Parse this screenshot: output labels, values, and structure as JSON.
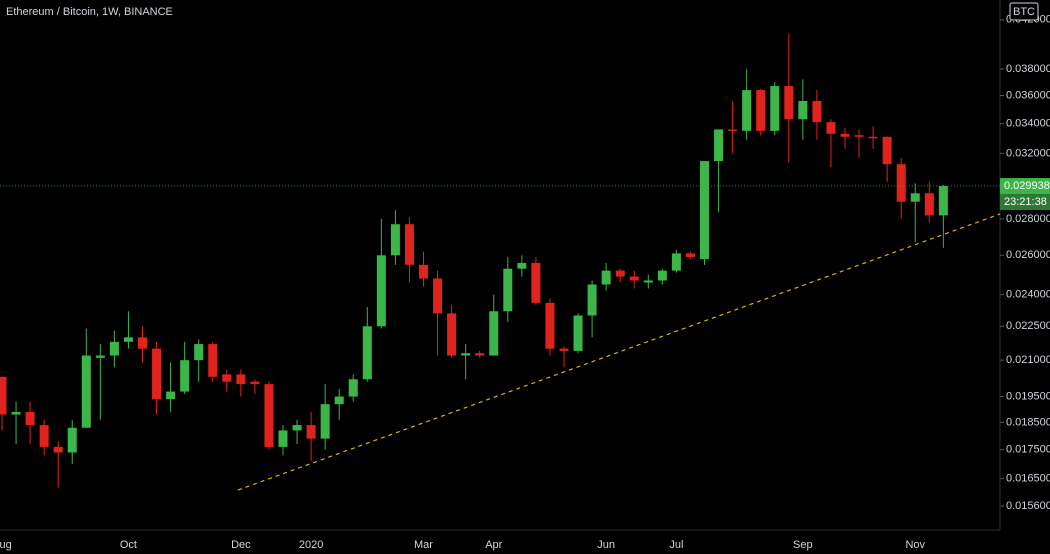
{
  "chart_data": {
    "type": "candlestick",
    "title": "Ethereum / Bitcoin, 1W, BINANCE",
    "currency": "BTC",
    "countdown": "23:21:38",
    "log_scale": true,
    "up_color": "#3cb648",
    "down_color": "#e0231c",
    "categories": [
      "Aug",
      null,
      null,
      null,
      null,
      null,
      null,
      null,
      null,
      "Oct",
      null,
      null,
      null,
      null,
      null,
      null,
      null,
      "Dec",
      null,
      null,
      null,
      null,
      "2020",
      null,
      null,
      null,
      null,
      null,
      null,
      null,
      "Mar",
      null,
      null,
      null,
      null,
      "Apr",
      null,
      null,
      null,
      null,
      null,
      null,
      null,
      "Jun",
      null,
      null,
      null,
      null,
      "Jul",
      null,
      null,
      null,
      null,
      null,
      null,
      null,
      null,
      "Sep",
      null,
      null,
      null,
      null,
      null,
      null,
      null,
      "Nov",
      null,
      null
    ],
    "open": [
      0.0203,
      0.0188,
      0.0189,
      0.0184,
      0.0176,
      0.0174,
      0.0183,
      0.0211,
      0.0212,
      0.0218,
      0.022,
      0.0215,
      0.0194,
      0.0197,
      0.021,
      0.0217,
      0.0204,
      0.0204,
      0.0201,
      0.02,
      0.0176,
      0.0182,
      0.0184,
      0.0179,
      0.0192,
      0.0195,
      0.0202,
      0.0225,
      0.026,
      0.0277,
      0.0255,
      0.0248,
      0.0231,
      0.0212,
      0.0213,
      0.0212,
      0.0232,
      0.0253,
      0.0256,
      0.0236,
      0.0215,
      0.0214,
      0.023,
      0.0245,
      0.0252,
      0.0249,
      0.0246,
      0.0247,
      0.0252,
      0.0261,
      0.0258,
      0.0315,
      0.0336,
      0.0335,
      0.0364,
      0.0335,
      0.0367,
      0.0343,
      0.0356,
      0.0341,
      0.0333,
      0.0332,
      0.0331,
      0.0331,
      0.0313,
      0.029,
      0.0295,
      0.0282
    ],
    "high": [
      0.0203,
      0.0193,
      0.0193,
      0.0186,
      0.0178,
      0.0186,
      0.0224,
      0.0217,
      0.0223,
      0.0232,
      0.0225,
      0.0218,
      0.0209,
      0.0218,
      0.0219,
      0.0218,
      0.0206,
      0.0206,
      0.0202,
      0.0201,
      0.0184,
      0.0186,
      0.0189,
      0.02,
      0.0198,
      0.0204,
      0.0234,
      0.028,
      0.0285,
      0.0281,
      0.0262,
      0.0252,
      0.0235,
      0.0217,
      0.0214,
      0.024,
      0.0259,
      0.026,
      0.0259,
      0.0238,
      0.0216,
      0.0231,
      0.0247,
      0.0256,
      0.0253,
      0.0252,
      0.025,
      0.0253,
      0.0263,
      0.0262,
      0.0315,
      0.0336,
      0.0356,
      0.038,
      0.0365,
      0.037,
      0.0408,
      0.0372,
      0.0364,
      0.0343,
      0.0337,
      0.0336,
      0.0338,
      0.0331,
      0.0317,
      0.0301,
      0.0302,
      0.03
    ],
    "low": [
      0.0182,
      0.0177,
      0.0177,
      0.0173,
      0.0162,
      0.017,
      0.0183,
      0.0186,
      0.0207,
      0.0215,
      0.0209,
      0.0188,
      0.0189,
      0.0196,
      0.0201,
      0.0201,
      0.0197,
      0.0195,
      0.0196,
      0.0175,
      0.0173,
      0.0177,
      0.0171,
      0.0175,
      0.0186,
      0.0193,
      0.0201,
      0.0224,
      0.0255,
      0.0246,
      0.0244,
      0.0212,
      0.0211,
      0.0202,
      0.0211,
      0.0212,
      0.0227,
      0.0249,
      0.0235,
      0.0212,
      0.0207,
      0.0213,
      0.022,
      0.0242,
      0.0246,
      0.0243,
      0.0243,
      0.0245,
      0.0251,
      0.0258,
      0.0255,
      0.0284,
      0.032,
      0.0329,
      0.0332,
      0.0332,
      0.0314,
      0.0329,
      0.0329,
      0.0311,
      0.0323,
      0.0317,
      0.0323,
      0.0302,
      0.028,
      0.0267,
      0.0278,
      0.0264
    ],
    "close": [
      0.0188,
      0.0189,
      0.0184,
      0.0176,
      0.0174,
      0.0183,
      0.0212,
      0.0212,
      0.0218,
      0.022,
      0.0215,
      0.0194,
      0.0197,
      0.021,
      0.0217,
      0.0203,
      0.0201,
      0.02,
      0.02,
      0.0176,
      0.0182,
      0.0184,
      0.0179,
      0.0192,
      0.0195,
      0.0202,
      0.0225,
      0.026,
      0.0277,
      0.0255,
      0.0248,
      0.0231,
      0.0212,
      0.0213,
      0.0212,
      0.0232,
      0.0253,
      0.0256,
      0.0236,
      0.0215,
      0.0214,
      0.023,
      0.0245,
      0.0252,
      0.0249,
      0.0247,
      0.0247,
      0.0252,
      0.0261,
      0.0259,
      0.0315,
      0.0336,
      0.0335,
      0.0364,
      0.0335,
      0.0367,
      0.0343,
      0.0356,
      0.0341,
      0.0333,
      0.0331,
      0.0331,
      0.033,
      0.0313,
      0.029,
      0.0295,
      0.0282,
      0.029938
    ],
    "ylim": [
      0.01486,
      0.04373
    ],
    "yticks": [
      {
        "value": 0.0156,
        "label": "0.015600"
      },
      {
        "value": 0.0165,
        "label": "0.016500"
      },
      {
        "value": 0.0175,
        "label": "0.017500"
      },
      {
        "value": 0.0185,
        "label": "0.018500"
      },
      {
        "value": 0.0195,
        "label": "0.019500"
      },
      {
        "value": 0.021,
        "label": "0.021000"
      },
      {
        "value": 0.0225,
        "label": "0.022500"
      },
      {
        "value": 0.024,
        "label": "0.024000"
      },
      {
        "value": 0.026,
        "label": "0.026000"
      },
      {
        "value": 0.028,
        "label": "0.028000"
      },
      {
        "value": 0.032,
        "label": "0.032000"
      },
      {
        "value": 0.034,
        "label": "0.034000"
      },
      {
        "value": 0.036,
        "label": "0.036000"
      },
      {
        "value": 0.038,
        "label": "0.038000"
      },
      {
        "value": 0.042,
        "label": "0.042000"
      }
    ]
  }
}
